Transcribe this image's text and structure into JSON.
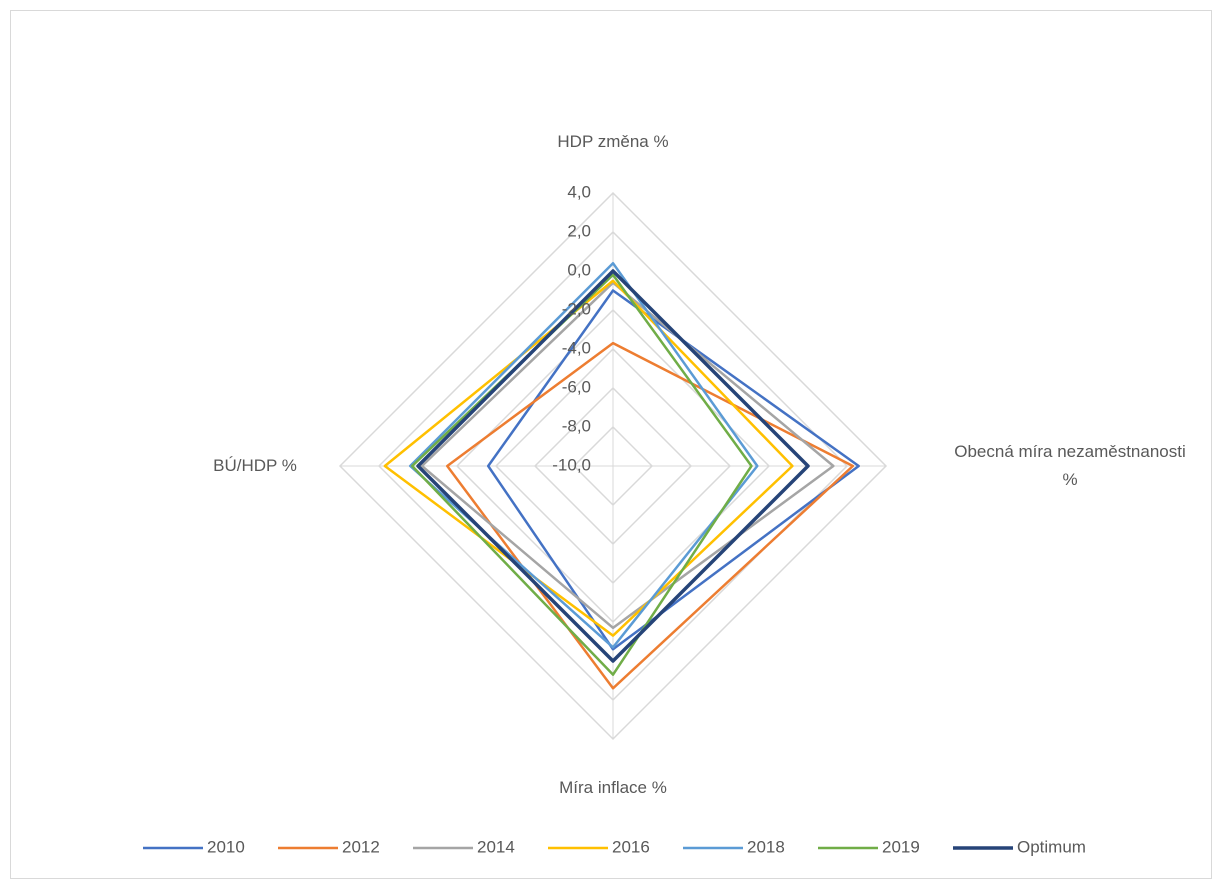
{
  "chart_data": {
    "type": "radar",
    "categories": [
      "HDP změna %",
      "Obecná míra nezaměstnanosti %",
      "Míra inflace %",
      "BÚ/HDP %"
    ],
    "rlim": [
      -10,
      4
    ],
    "rticks": [
      {
        "value": -10,
        "label": "-10,0"
      },
      {
        "value": -8,
        "label": "-8,0"
      },
      {
        "value": -6,
        "label": "-6,0"
      },
      {
        "value": -4,
        "label": "-4,0"
      },
      {
        "value": -2,
        "label": "-2,0"
      },
      {
        "value": 0,
        "label": "0,0"
      },
      {
        "value": 2,
        "label": "2,0"
      },
      {
        "value": 4,
        "label": "4,0"
      }
    ],
    "grid": true,
    "legend": "bottom",
    "series": [
      {
        "name": "2010",
        "color": "#4472c4",
        "values": [
          -1.0,
          2.6,
          -0.6,
          -3.6
        ]
      },
      {
        "name": "2012",
        "color": "#ed7d31",
        "values": [
          -3.7,
          2.3,
          1.4,
          -1.5
        ]
      },
      {
        "name": "2014",
        "color": "#a5a5a5",
        "values": [
          -0.6,
          1.3,
          -1.7,
          -0.2
        ]
      },
      {
        "name": "2016",
        "color": "#ffc000",
        "values": [
          -0.5,
          -0.8,
          -1.3,
          1.7
        ]
      },
      {
        "name": "2018",
        "color": "#5b9bd5",
        "values": [
          0.4,
          -2.6,
          -0.7,
          0.4
        ]
      },
      {
        "name": "2019",
        "color": "#70ad47",
        "values": [
          -0.2,
          -2.9,
          0.7,
          0.3
        ]
      },
      {
        "name": "Optimum",
        "color": "#264478",
        "values": [
          0,
          0,
          0,
          0
        ]
      }
    ]
  }
}
